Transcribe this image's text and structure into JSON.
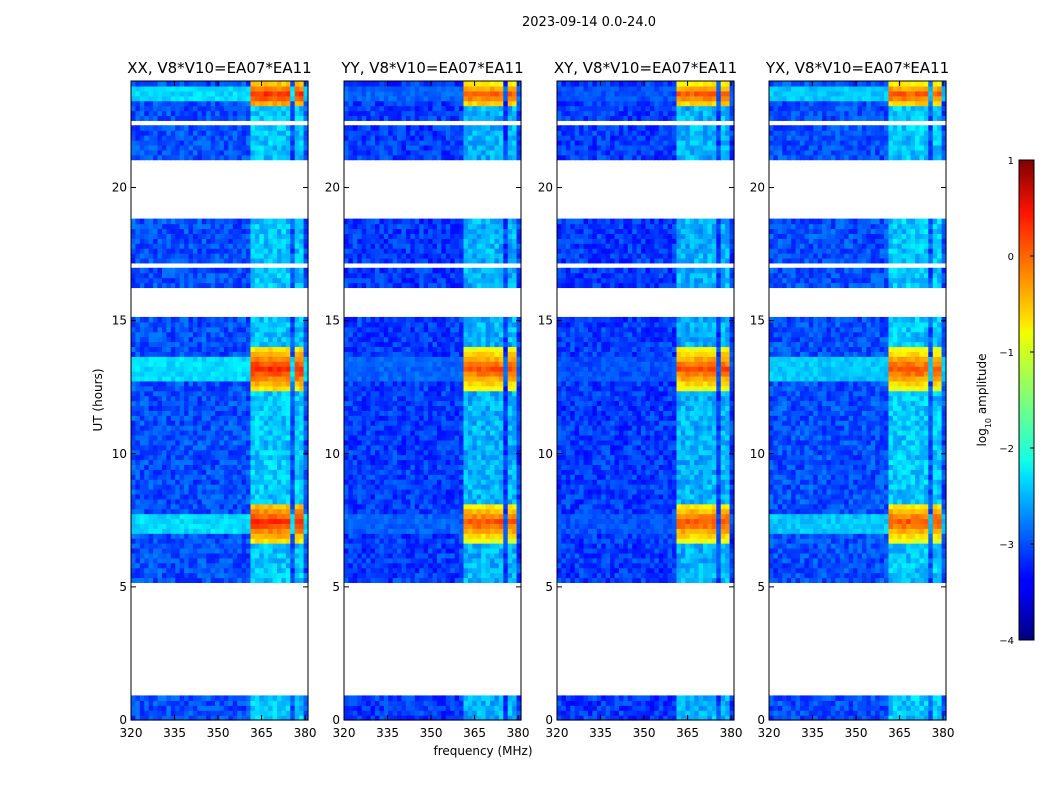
{
  "chart_data": {
    "type": "heatmap",
    "suptitle": "2023-09-14 0.0-24.0",
    "xlabel": "frequency (MHz)",
    "ylabel": "UT (hours)",
    "xlim": [
      320,
      381
    ],
    "ylim": [
      0,
      24
    ],
    "xticks": [
      320,
      335,
      350,
      365,
      380
    ],
    "yticks": [
      0,
      5,
      10,
      15,
      20
    ],
    "panels": [
      {
        "title": "XX, V8*V10=EA07*EA11",
        "base_level": -3.0,
        "rfi_peak": 0.2,
        "band_level": -2.3
      },
      {
        "title": "YY, V8*V10=EA07*EA11",
        "base_level": -3.1,
        "rfi_peak": 0.0,
        "band_level": -2.9
      },
      {
        "title": "XY, V8*V10=EA07*EA11",
        "base_level": -3.1,
        "rfi_peak": 0.0,
        "band_level": -3.0
      },
      {
        "title": "YX, V8*V10=EA07*EA11",
        "base_level": -3.0,
        "rfi_peak": 0.0,
        "band_level": -2.4
      }
    ],
    "data_gaps_hours": [
      [
        0.85,
        5.1
      ],
      [
        5.45,
        5.6
      ],
      [
        15.2,
        16.3
      ],
      [
        16.95,
        17.2
      ],
      [
        18.9,
        21.1
      ],
      [
        22.25,
        22.5
      ]
    ],
    "rfi_channels_mhz": [
      [
        361,
        365
      ],
      [
        366,
        370
      ],
      [
        371,
        375
      ],
      [
        376,
        380
      ]
    ],
    "rfi_bursts_hours": [
      [
        6.7,
        8.2
      ],
      [
        12.4,
        14.0
      ],
      [
        23.0,
        24.0
      ]
    ],
    "colorbar": {
      "label": "log",
      "label_sub": "10",
      "label_rest": " amplitude",
      "range": [
        -4,
        1
      ],
      "ticks": [
        1,
        0,
        -1,
        -2,
        -3,
        -4
      ],
      "tick_labels": [
        "1",
        "0",
        "−1",
        "−2",
        "−3",
        "−4"
      ],
      "colormap": "jet"
    }
  }
}
